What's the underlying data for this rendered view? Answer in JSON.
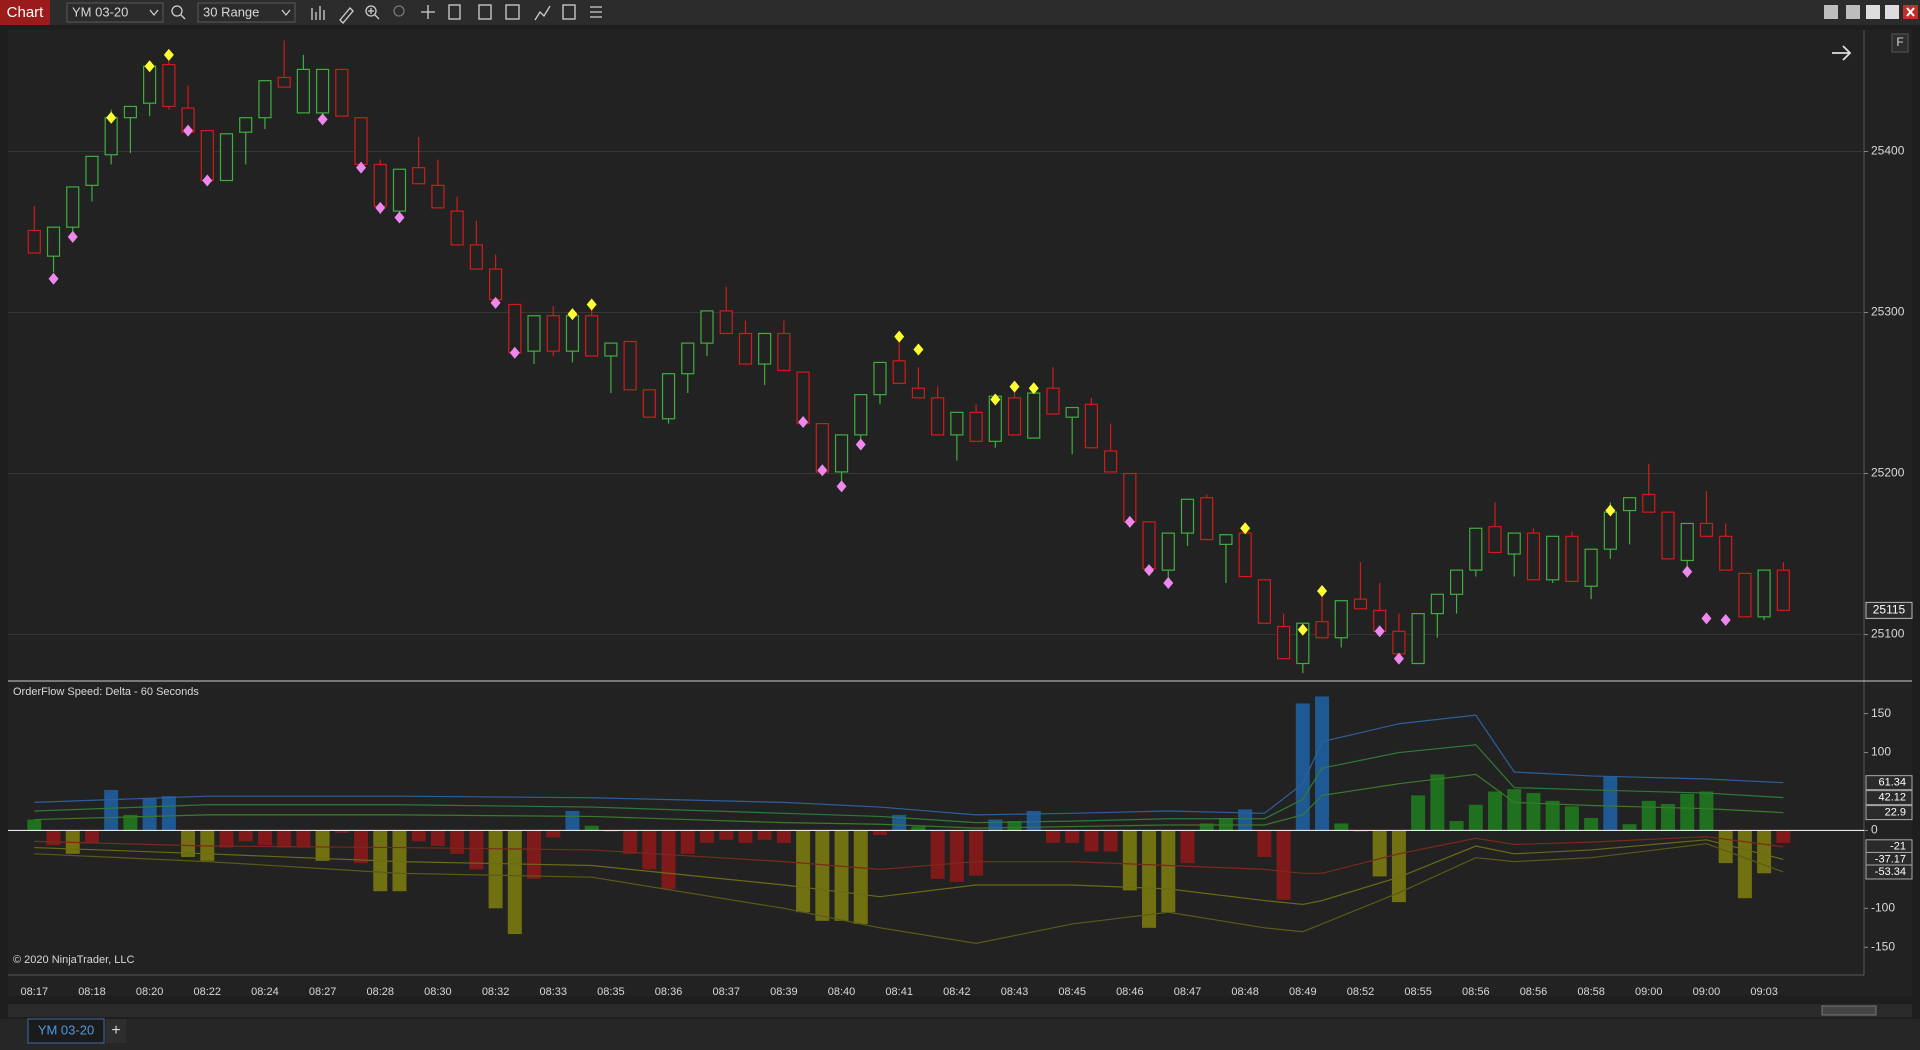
{
  "ui": {
    "window_title": "Chart",
    "instrument": "YM 03-20",
    "bar_type": "30 Range",
    "scale_button": "F",
    "tab": "YM 03-20",
    "new_tab": "+"
  },
  "chart_data": [
    {
      "type": "candlestick",
      "categories": [
        "08:17",
        null,
        null,
        "08:18",
        null,
        null,
        "08:20",
        null,
        null,
        "08:22",
        null,
        null,
        "08:24",
        null,
        null,
        "08:27",
        null,
        null,
        "08:28",
        null,
        null,
        "08:30",
        null,
        null,
        "08:32",
        null,
        null,
        "08:33",
        null,
        null,
        "08:35",
        null,
        null,
        "08:36",
        null,
        null,
        "08:37",
        null,
        null,
        "08:39",
        null,
        null,
        "08:40",
        null,
        null,
        "08:41",
        null,
        null,
        "08:42",
        null,
        null,
        "08:43",
        null,
        null,
        "08:45",
        null,
        null,
        "08:46",
        null,
        null,
        "08:47",
        null,
        null,
        "08:48",
        null,
        null,
        "08:49",
        null,
        null,
        "08:52",
        null,
        null,
        "08:55",
        null,
        null,
        "08:56",
        null,
        null,
        "08:56",
        null,
        null,
        "08:58",
        null,
        null,
        "09:00",
        null,
        null,
        "09:00",
        null,
        null,
        "09:03",
        null
      ],
      "ohlc": [
        [
          25351,
          25366,
          25337,
          25337
        ],
        [
          25335,
          25353,
          25325,
          25353
        ],
        [
          25353,
          25378,
          25350,
          25378
        ],
        [
          25379,
          25397,
          25369,
          25397
        ],
        [
          25398,
          25426,
          25392,
          25421
        ],
        [
          25421,
          25428,
          25399,
          25428
        ],
        [
          25430,
          25456,
          25422,
          25453
        ],
        [
          25454,
          25460,
          25426,
          25428
        ],
        [
          25427,
          25441,
          25412,
          25412
        ],
        [
          25413,
          25413,
          25380,
          25382
        ],
        [
          25382,
          25411,
          25382,
          25411
        ],
        [
          25412,
          25421,
          25392,
          25421
        ],
        [
          25421,
          25444,
          25414,
          25444
        ],
        [
          25446,
          25469,
          25440,
          25440
        ],
        [
          25424,
          25460,
          25424,
          25451
        ],
        [
          25424,
          25451,
          25418,
          25451
        ],
        [
          25451,
          25451,
          25422,
          25422
        ],
        [
          25421,
          25421,
          25388,
          25392
        ],
        [
          25392,
          25395,
          25361,
          25366
        ],
        [
          25363,
          25389,
          25357,
          25389
        ],
        [
          25390,
          25409,
          25380,
          25380
        ],
        [
          25379,
          25395,
          25365,
          25365
        ],
        [
          25363,
          25372,
          25342,
          25342
        ],
        [
          25342,
          25357,
          25327,
          25327
        ],
        [
          25327,
          25336,
          25308,
          25308
        ],
        [
          25305,
          25305,
          25275,
          25275
        ],
        [
          25276,
          25298,
          25268,
          25298
        ],
        [
          25298,
          25304,
          25273,
          25276
        ],
        [
          25276,
          25302,
          25269,
          25298
        ],
        [
          25298,
          25304,
          25273,
          25273
        ],
        [
          25273,
          25281,
          25250,
          25281
        ],
        [
          25282,
          25282,
          25252,
          25252
        ],
        [
          25252,
          25252,
          25235,
          25235
        ],
        [
          25234,
          25262,
          25231,
          25262
        ],
        [
          25262,
          25281,
          25250,
          25281
        ],
        [
          25281,
          25301,
          25273,
          25301
        ],
        [
          25301,
          25316,
          25287,
          25287
        ],
        [
          25287,
          25295,
          25268,
          25268
        ],
        [
          25268,
          25287,
          25255,
          25287
        ],
        [
          25287,
          25295,
          25264,
          25264
        ],
        [
          25263,
          25263,
          25231,
          25231
        ],
        [
          25231,
          25231,
          25201,
          25201
        ],
        [
          25201,
          25224,
          25195,
          25224
        ],
        [
          25224,
          25249,
          25220,
          25249
        ],
        [
          25249,
          25269,
          25243,
          25269
        ],
        [
          25270,
          25282,
          25256,
          25256
        ],
        [
          25253,
          25266,
          25247,
          25247
        ],
        [
          25247,
          25254,
          25224,
          25224
        ],
        [
          25224,
          25238,
          25208,
          25238
        ],
        [
          25238,
          25243,
          25220,
          25220
        ],
        [
          25220,
          25248,
          25216,
          25248
        ],
        [
          25247,
          25252,
          25224,
          25224
        ],
        [
          25222,
          25250,
          25222,
          25250
        ],
        [
          25253,
          25266,
          25237,
          25237
        ],
        [
          25235,
          25241,
          25212,
          25241
        ],
        [
          25243,
          25247,
          25216,
          25216
        ],
        [
          25214,
          25231,
          25201,
          25201
        ],
        [
          25200,
          25200,
          25170,
          25170
        ],
        [
          25170,
          25170,
          25141,
          25141
        ],
        [
          25140,
          25163,
          25132,
          25163
        ],
        [
          25163,
          25184,
          25155,
          25184
        ],
        [
          25185,
          25187,
          25159,
          25159
        ],
        [
          25156,
          25162,
          25132,
          25162
        ],
        [
          25163,
          25166,
          25136,
          25136
        ],
        [
          25134,
          25134,
          25107,
          25107
        ],
        [
          25105,
          25113,
          25085,
          25085
        ],
        [
          25082,
          25107,
          25076,
          25107
        ],
        [
          25108,
          25128,
          25098,
          25098
        ],
        [
          25098,
          25121,
          25092,
          25121
        ],
        [
          25122,
          25145,
          25116,
          25116
        ],
        [
          25115,
          25132,
          25102,
          25102
        ],
        [
          25102,
          25113,
          25082,
          25088
        ],
        [
          25082,
          25113,
          25082,
          25113
        ],
        [
          25113,
          25125,
          25098,
          25125
        ],
        [
          25125,
          25140,
          25113,
          25140
        ],
        [
          25140,
          25166,
          25136,
          25166
        ],
        [
          25167,
          25182,
          25151,
          25151
        ],
        [
          25150,
          25163,
          25136,
          25163
        ],
        [
          25163,
          25166,
          25134,
          25134
        ],
        [
          25134,
          25161,
          25132,
          25161
        ],
        [
          25161,
          25164,
          25133,
          25133
        ],
        [
          25130,
          25153,
          25122,
          25153
        ],
        [
          25153,
          25182,
          25147,
          25176
        ],
        [
          25177,
          25185,
          25156,
          25185
        ],
        [
          25187,
          25206,
          25176,
          25176
        ],
        [
          25176,
          25176,
          25147,
          25147
        ],
        [
          25146,
          25169,
          25140,
          25169
        ],
        [
          25169,
          25189,
          25161,
          25161
        ],
        [
          25161,
          25169,
          25140,
          25140
        ],
        [
          25138,
          25138,
          25111,
          25111
        ],
        [
          25111,
          25140,
          25109,
          25140
        ],
        [
          25140,
          25145,
          25115,
          25115
        ]
      ],
      "up_color": "#3fae3f",
      "down_color": "#d11b1b",
      "up_markers": {
        "color": "#ffff33",
        "values": [
          null,
          null,
          null,
          null,
          25421,
          null,
          25453,
          25460,
          null,
          null,
          null,
          null,
          null,
          null,
          null,
          null,
          null,
          null,
          null,
          null,
          null,
          null,
          null,
          null,
          null,
          null,
          null,
          null,
          25299,
          25305,
          null,
          null,
          null,
          null,
          null,
          null,
          null,
          null,
          null,
          null,
          null,
          null,
          null,
          null,
          null,
          25285,
          25277,
          null,
          null,
          null,
          25246,
          25254,
          25253,
          null,
          null,
          null,
          null,
          null,
          null,
          null,
          null,
          null,
          null,
          25166,
          null,
          null,
          25103,
          25127,
          null,
          null,
          null,
          null,
          null,
          null,
          null,
          null,
          null,
          null,
          null,
          null,
          null,
          null,
          25177,
          null,
          null,
          null,
          null,
          null,
          null,
          null,
          null,
          null
        ]
      },
      "down_markers": {
        "color": "#ee88ee",
        "values": [
          null,
          25321,
          25347,
          null,
          null,
          null,
          null,
          null,
          25413,
          25382,
          null,
          null,
          null,
          null,
          null,
          25420,
          null,
          25390,
          25365,
          25359,
          null,
          null,
          null,
          null,
          25306,
          25275,
          null,
          null,
          null,
          null,
          null,
          null,
          null,
          null,
          null,
          null,
          null,
          null,
          null,
          null,
          25232,
          25202,
          25192,
          25218,
          null,
          null,
          null,
          null,
          null,
          null,
          null,
          null,
          null,
          null,
          null,
          null,
          null,
          25170,
          25140,
          25132,
          null,
          null,
          null,
          null,
          null,
          null,
          null,
          null,
          null,
          null,
          25102,
          25085,
          null,
          null,
          null,
          null,
          null,
          null,
          null,
          null,
          null,
          null,
          null,
          null,
          null,
          null,
          25139,
          25110,
          25109,
          null
        ]
      },
      "ylim": [
        25073,
        25473
      ],
      "yticks": [
        25100,
        25200,
        25300,
        25400
      ],
      "grid": true
    },
    {
      "type": "bar",
      "title": "OrderFlow Speed: Delta - 60 Seconds",
      "copyright": "© 2020 NinjaTrader, LLC",
      "values": [
        14,
        -19,
        -30,
        -16,
        52,
        20,
        41,
        44,
        -34,
        -39,
        -22,
        -14,
        -19,
        -22,
        -22,
        -39,
        -3,
        -42,
        -78,
        -78,
        -14,
        -20,
        -30,
        -50,
        -100,
        -133,
        -62,
        -9,
        25,
        6,
        -2,
        -30,
        -50,
        -75,
        -30,
        -16,
        -12,
        -16,
        -12,
        -16,
        -105,
        -116,
        -116,
        -120,
        -6,
        20,
        5,
        -62,
        -66,
        -58,
        14,
        12,
        25,
        -16,
        -16,
        -27,
        -27,
        -77,
        -125,
        -105,
        -42,
        9,
        16,
        27,
        -34,
        -89,
        163,
        172,
        9,
        -2,
        -59,
        -92,
        45,
        72,
        12,
        33,
        50,
        53,
        48,
        38,
        31,
        16,
        69,
        8,
        38,
        34,
        47,
        50,
        -42,
        -87,
        -55,
        -16
      ],
      "colors": [
        "#1f7a1f",
        "#8b1a1a",
        "#7a7a10",
        "#8b1a1a",
        "#1f5fa0",
        "#1f7a1f",
        "#1f5fa0",
        "#1f5fa0",
        "#7a7a10",
        "#7a7a10",
        "#8b1a1a",
        "#8b1a1a",
        "#8b1a1a",
        "#8b1a1a",
        "#8b1a1a",
        "#7a7a10",
        "#8b1a1a",
        "#8b1a1a",
        "#7a7a10",
        "#7a7a10",
        "#8b1a1a",
        "#8b1a1a",
        "#8b1a1a",
        "#8b1a1a",
        "#7a7a10",
        "#7a7a10",
        "#8b1a1a",
        "#8b1a1a",
        "#1f5fa0",
        "#1f7a1f",
        "#8b1a1a",
        "#8b1a1a",
        "#8b1a1a",
        "#8b1a1a",
        "#8b1a1a",
        "#8b1a1a",
        "#8b1a1a",
        "#8b1a1a",
        "#8b1a1a",
        "#8b1a1a",
        "#7a7a10",
        "#7a7a10",
        "#7a7a10",
        "#7a7a10",
        "#8b1a1a",
        "#1f5fa0",
        "#1f7a1f",
        "#8b1a1a",
        "#8b1a1a",
        "#8b1a1a",
        "#1f5fa0",
        "#1f7a1f",
        "#1f5fa0",
        "#8b1a1a",
        "#8b1a1a",
        "#8b1a1a",
        "#8b1a1a",
        "#7a7a10",
        "#7a7a10",
        "#7a7a10",
        "#8b1a1a",
        "#1f7a1f",
        "#1f7a1f",
        "#1f5fa0",
        "#8b1a1a",
        "#8b1a1a",
        "#1f5fa0",
        "#1f5fa0",
        "#1f7a1f",
        "#8b1a1a",
        "#7a7a10",
        "#7a7a10",
        "#1f7a1f",
        "#1f7a1f",
        "#1f7a1f",
        "#1f7a1f",
        "#1f7a1f",
        "#1f7a1f",
        "#1f7a1f",
        "#1f7a1f",
        "#1f7a1f",
        "#1f7a1f",
        "#1f5fa0",
        "#1f7a1f",
        "#1f7a1f",
        "#1f7a1f",
        "#1f7a1f",
        "#1f7a1f",
        "#7a7a10",
        "#7a7a10",
        "#7a7a10",
        "#8b1a1a"
      ],
      "bands": {
        "x": [
          0,
          9,
          19,
          29,
          39,
          44,
          49,
          54,
          59,
          64,
          66,
          67,
          71,
          75,
          77,
          81,
          87,
          91
        ],
        "series": [
          {
            "color": "#2f5f9a",
            "values": [
              36,
              44,
              44,
              42,
              36,
              30,
              20,
              22,
              25,
              22,
              60,
              114,
              137,
              148,
              75,
              70,
              66,
              61.34
            ]
          },
          {
            "color": "#2f7a3a",
            "values": [
              25,
              33,
              33,
              30,
              22,
              18,
              10,
              12,
              15,
              15,
              40,
              80,
              100,
              110,
              55,
              52,
              48,
              42.12
            ]
          },
          {
            "color": "#3a7a2a",
            "values": [
              14,
              20,
              20,
              18,
              10,
              8,
              3,
              5,
              7,
              7,
              20,
              45,
              60,
              72,
              36,
              32,
              28,
              22.9
            ]
          },
          {
            "color": "#7a2a1a",
            "values": [
              -14,
              -20,
              -22,
              -25,
              -40,
              -50,
              -40,
              -40,
              -45,
              -50,
              -55,
              -55,
              -30,
              -10,
              -18,
              -15,
              -8,
              -21
            ]
          },
          {
            "color": "#6a6a18",
            "values": [
              -22,
              -30,
              -40,
              -45,
              -70,
              -85,
              -70,
              -70,
              -75,
              -90,
              -95,
              -90,
              -60,
              -20,
              -30,
              -25,
              -12,
              -37.17
            ]
          },
          {
            "color": "#5a5a18",
            "values": [
              -30,
              -40,
              -55,
              -60,
              -100,
              -125,
              -145,
              -120,
              -105,
              -125,
              -130,
              -120,
              -80,
              -35,
              -40,
              -35,
              -17,
              -53.34
            ]
          }
        ]
      },
      "ylim": [
        -183,
        188
      ],
      "yticks": [
        -150,
        -100,
        0,
        100,
        150
      ]
    }
  ]
}
